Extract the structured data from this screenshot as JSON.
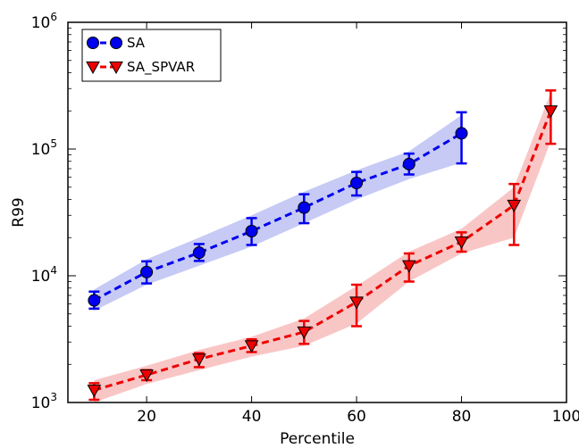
{
  "chart_data": {
    "type": "line",
    "xlabel": "Percentile",
    "ylabel": "R99",
    "xlim": [
      5,
      100
    ],
    "ylim": [
      1000,
      1000000
    ],
    "yscale": "log",
    "xticks": [
      20,
      40,
      60,
      80,
      100
    ],
    "yticks": [
      {
        "value": 1000,
        "base": "10",
        "exp": "3"
      },
      {
        "value": 10000,
        "base": "10",
        "exp": "4"
      },
      {
        "value": 100000,
        "base": "10",
        "exp": "5"
      },
      {
        "value": 1000000,
        "base": "10",
        "exp": "6"
      }
    ],
    "grid": false,
    "legend": "top-left",
    "series": [
      {
        "name": "SA",
        "color": "#0000ee",
        "band_color": "#c0c4f4",
        "marker": "circle",
        "x": [
          10,
          20,
          30,
          40,
          50,
          60,
          70,
          80
        ],
        "y": [
          6400,
          10700,
          15200,
          22500,
          34500,
          54000,
          76000,
          133000
        ],
        "err_low": [
          5500,
          8700,
          13100,
          17500,
          26000,
          43000,
          63000,
          77000
        ],
        "err_high": [
          7500,
          13000,
          17800,
          28500,
          44000,
          66000,
          92000,
          195000
        ],
        "band_low": [
          5300,
          8500,
          12000,
          17000,
          26000,
          40000,
          58000,
          78000
        ],
        "band_high": [
          7800,
          13500,
          20000,
          30000,
          46000,
          68000,
          96000,
          185000
        ]
      },
      {
        "name": "SA_SPVAR",
        "color": "#ee0000",
        "band_color": "#f8c0c0",
        "marker": "triangle-down",
        "x": [
          10,
          20,
          30,
          40,
          50,
          60,
          70,
          80,
          90,
          97
        ],
        "y": [
          1250,
          1650,
          2200,
          2800,
          3600,
          6200,
          12000,
          18500,
          36000,
          200000
        ],
        "err_low": [
          1050,
          1500,
          1900,
          2500,
          2900,
          4000,
          9000,
          15500,
          17500,
          110000
        ],
        "err_high": [
          1420,
          1800,
          2450,
          3150,
          4400,
          8500,
          15000,
          22000,
          53000,
          290000
        ],
        "band_low": [
          1000,
          1400,
          1800,
          2300,
          2800,
          4200,
          9000,
          15000,
          20000,
          115000
        ],
        "band_high": [
          1500,
          1950,
          2600,
          3300,
          4600,
          8300,
          15500,
          23500,
          50000,
          280000
        ]
      }
    ]
  }
}
